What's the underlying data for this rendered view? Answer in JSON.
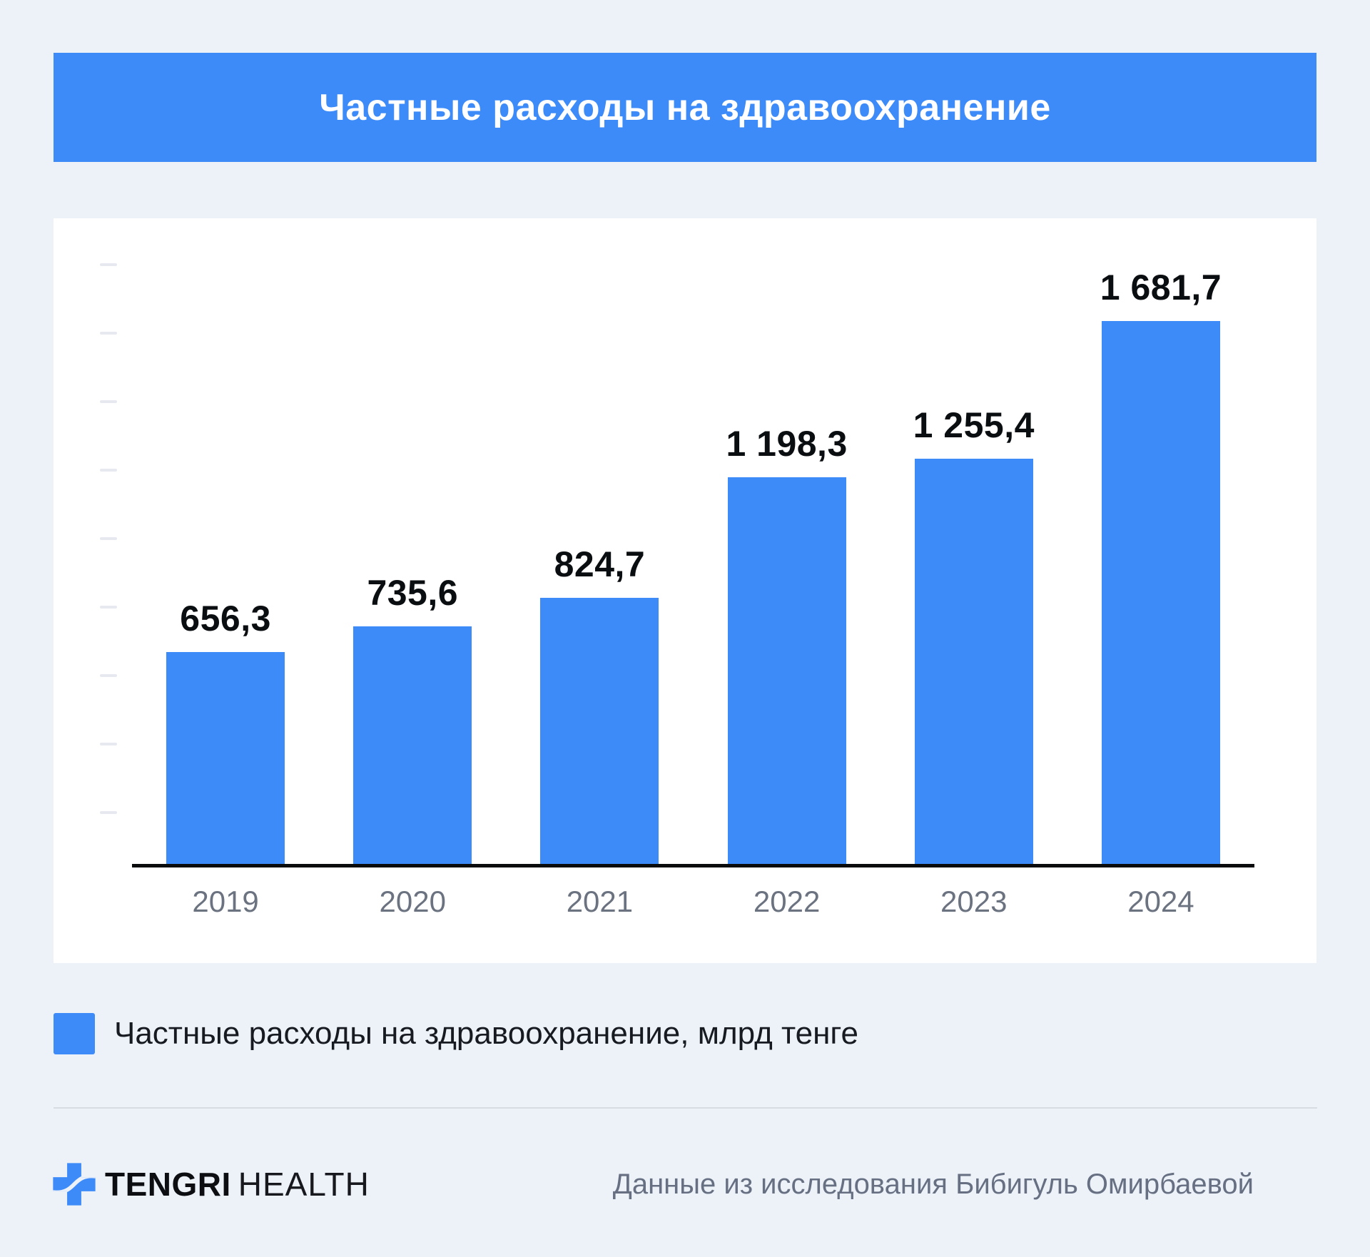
{
  "page": {
    "background_color": "#edf2f9",
    "accent_color": "#3d8bf8"
  },
  "header": {
    "title": "Частные расходы на здравоохранение"
  },
  "chart_data": {
    "type": "bar",
    "title": "Частные расходы на здравоохранение",
    "categories": [
      "2019",
      "2020",
      "2021",
      "2022",
      "2023",
      "2024"
    ],
    "values": [
      656.3,
      735.6,
      824.7,
      1198.3,
      1255.4,
      1681.7
    ],
    "value_labels": [
      "656,3",
      "735,6",
      "824,7",
      "1 198,3",
      "1 255,4",
      "1 681,7"
    ],
    "series_name": "Частные расходы на здравоохранение, млрд тенге",
    "unit": "млрд тенге",
    "xlabel": "",
    "ylabel": "",
    "ylim": [
      0,
      1900
    ],
    "y_tick_count": 9,
    "grid": false,
    "axis_labels_shown": false,
    "legend_position": "bottom-left",
    "bar_color": "#3d8bf8"
  },
  "legend": {
    "label": "Частные расходы на здравоохранение, млрд тенге",
    "swatch_color": "#3d8bf8"
  },
  "footer": {
    "brand_primary": "TENGRI",
    "brand_secondary": "HEALTH",
    "source": "Данные из исследования Бибигуль Омирбаевой"
  }
}
